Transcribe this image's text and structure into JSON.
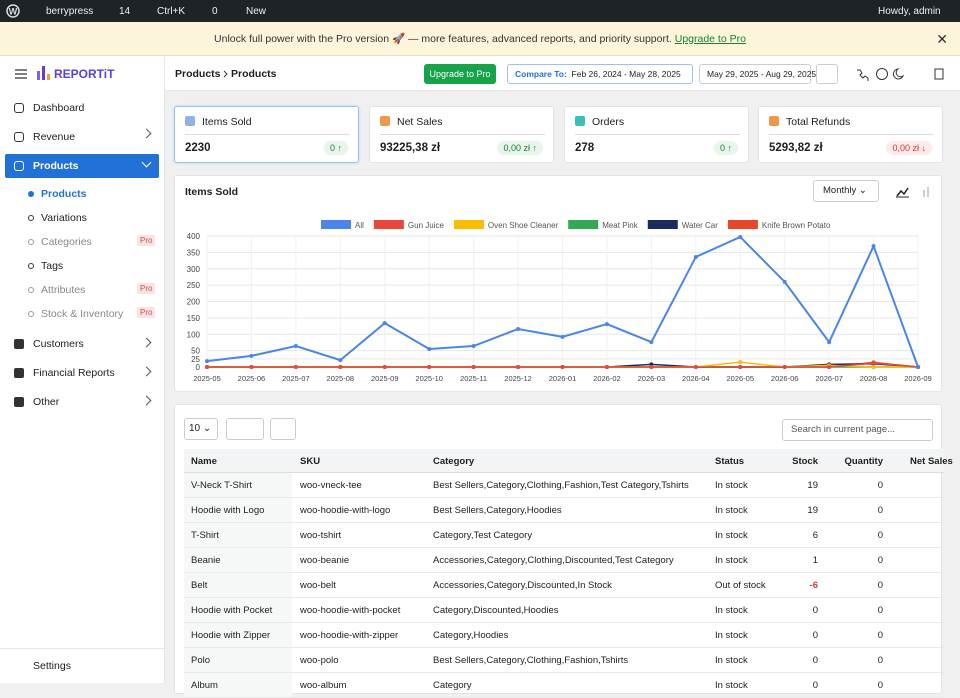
{
  "admin_bar": {
    "site": "berrypress",
    "updates": "14",
    "search": "Ctrl+K",
    "comments": "0",
    "new": "New",
    "greeting": "Howdy, admin"
  },
  "banner": {
    "text": "Unlock full power with the Pro version 🚀 — more features, advanced reports, and priority support.",
    "link": "Upgrade to Pro"
  },
  "sidebar": {
    "logo": "REPORTiT",
    "items": [
      {
        "label": "Dashboard"
      },
      {
        "label": "Revenue"
      },
      {
        "label": "Products"
      }
    ],
    "sub_items": [
      {
        "label": "Products"
      },
      {
        "label": "Variations"
      },
      {
        "label": "Categories",
        "badge": "Pro"
      },
      {
        "label": "Tags"
      },
      {
        "label": "Attributes",
        "badge": "Pro"
      },
      {
        "label": "Stock & Inventory",
        "badge": "Pro"
      }
    ],
    "more_items": [
      {
        "label": "Customers"
      },
      {
        "label": "Financial Reports"
      },
      {
        "label": "Other"
      }
    ],
    "settings": "Settings"
  },
  "header": {
    "breadcrumb": [
      "Products",
      "Products"
    ],
    "upgrade": "Upgrade to Pro",
    "compare_label": "Compare To:",
    "compare_range": "Feb 26, 2024 - May 28, 2025",
    "range": "May 29, 2025 - Aug 29, 2025"
  },
  "kpis": [
    {
      "label": "Items Sold",
      "value": "2230",
      "change": "0 ↑",
      "color": "#8fb3e6"
    },
    {
      "label": "Net Sales",
      "value": "93225,38 zł",
      "change": "0,00 zł ↑",
      "color": "#f0974a"
    },
    {
      "label": "Orders",
      "value": "278",
      "change": "0 ↑",
      "color": "#3dbdb8"
    },
    {
      "label": "Total Refunds",
      "value": "5293,82 zł",
      "change": "0,00 zł ↓",
      "color": "#f0974a"
    }
  ],
  "chart_data": {
    "type": "line",
    "title": "Items Sold",
    "period": "Monthly",
    "categories": [
      "2025-05",
      "2025-06",
      "2025-07",
      "2025-08",
      "2025-09",
      "2025-10",
      "2025-11",
      "2025-12",
      "2026-01",
      "2026-02",
      "2026-03",
      "2026-04",
      "2026-05",
      "2026-06",
      "2026-07",
      "2026-08",
      "2026-09"
    ],
    "series": [
      {
        "name": "All",
        "color": "#4a86e8",
        "values": [
          18,
          34,
          64,
          21,
          134,
          55,
          64,
          116,
          92,
          131,
          76,
          336,
          397,
          260,
          76,
          369,
          0
        ]
      },
      {
        "name": "Gun Juice",
        "color": "#e8473c",
        "values": [
          0,
          0,
          0,
          0,
          0,
          0,
          0,
          0,
          0,
          0,
          0,
          0,
          0,
          0,
          0,
          12,
          0
        ]
      },
      {
        "name": "Oven Shoe Cleaner",
        "color": "#fbbc04",
        "values": [
          0,
          0,
          0,
          0,
          0,
          0,
          0,
          0,
          0,
          0,
          0,
          0,
          15,
          0,
          5,
          0,
          0
        ]
      },
      {
        "name": "Meat Pink",
        "color": "#34a853",
        "values": [
          0,
          0,
          0,
          0,
          0,
          0,
          0,
          0,
          0,
          0,
          0,
          0,
          0,
          0,
          0,
          0,
          0
        ]
      },
      {
        "name": "Water Car",
        "color": "#1a2b5e",
        "values": [
          0,
          0,
          0,
          0,
          0,
          0,
          0,
          0,
          0,
          0,
          8,
          0,
          0,
          0,
          8,
          10,
          0
        ]
      },
      {
        "name": "Knife Brown Potato",
        "color": "#e8472a",
        "values": [
          0,
          0,
          0,
          0,
          0,
          0,
          0,
          0,
          0,
          0,
          0,
          0,
          0,
          0,
          0,
          14,
          0
        ]
      }
    ],
    "ylim": [
      0,
      400
    ],
    "yticks": [
      0,
      25,
      50,
      100,
      150,
      200,
      250,
      300,
      350,
      400
    ],
    "grid": true
  },
  "table": {
    "page_size": "10",
    "search": "Search in current page...",
    "columns": [
      "Name",
      "SKU",
      "Category",
      "Status",
      "Stock",
      "Quantity",
      "Net Sales"
    ],
    "rows": [
      [
        "V-Neck T-Shirt",
        "woo-vneck-tee",
        "Best Sellers,Category,Clothing,Fashion,Test Category,Tshirts",
        "In stock",
        19,
        0
      ],
      [
        "Hoodie with Logo",
        "woo-hoodie-with-logo",
        "Best Sellers,Category,Hoodies",
        "In stock",
        19,
        0
      ],
      [
        "T-Shirt",
        "woo-tshirt",
        "Category,Test Category",
        "In stock",
        6,
        0
      ],
      [
        "Beanie",
        "woo-beanie",
        "Accessories,Category,Clothing,Discounted,Test Category",
        "In stock",
        1,
        0
      ],
      [
        "Belt",
        "woo-belt",
        "Accessories,Category,Discounted,In Stock",
        "Out of stock",
        -6,
        0
      ],
      [
        "Hoodie with Pocket",
        "woo-hoodie-with-pocket",
        "Category,Discounted,Hoodies",
        "In stock",
        0,
        0
      ],
      [
        "Hoodie with Zipper",
        "woo-hoodie-with-zipper",
        "Category,Hoodies",
        "In stock",
        0,
        0
      ],
      [
        "Polo",
        "woo-polo",
        "Best Sellers,Category,Clothing,Fashion,Tshirts",
        "In stock",
        0,
        0
      ],
      [
        "Album",
        "woo-album",
        "Category",
        "In stock",
        0,
        0
      ]
    ]
  }
}
